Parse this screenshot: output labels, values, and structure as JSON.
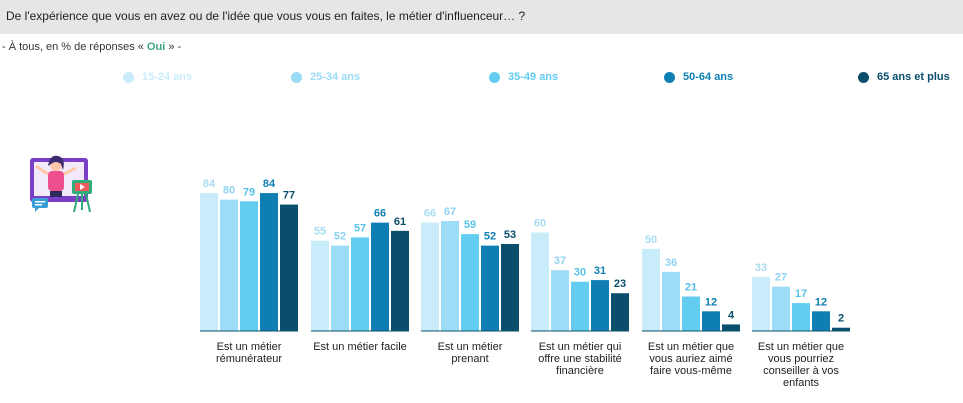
{
  "question": {
    "text": "De l'expérience que vous en avez ou de l'idée que vous vous en faites, le métier d'influenceur… ?",
    "sub_prefix": "- À tous, en % de réponses « ",
    "sub_highlight": "Oui",
    "sub_suffix": " » -"
  },
  "colors": {
    "15-24 ans": "#c9ecfa",
    "25-34 ans": "#9ddcf6",
    "35-49 ans": "#62ccf1",
    "50-64 ans": "#0f7fb3",
    "65 ans et plus": "#0b4e6b"
  },
  "chart_data": {
    "type": "bar",
    "title": "",
    "xlabel": "",
    "ylabel": "",
    "ylim": [
      0,
      100
    ],
    "grid": false,
    "legend_position": "top",
    "categories": [
      [
        "Est un métier",
        "rémunérateur"
      ],
      [
        "Est un métier facile"
      ],
      [
        "Est un métier",
        "prenant"
      ],
      [
        "Est un métier qui",
        "offre une stabilité",
        "financière"
      ],
      [
        "Est un métier que",
        "vous auriez aimé",
        "faire vous-même"
      ],
      [
        "Est un métier que",
        "vous pourriez",
        "conseiller à vos",
        "enfants"
      ]
    ],
    "series": [
      {
        "name": "15-24 ans",
        "values": [
          84,
          55,
          66,
          60,
          50,
          33
        ]
      },
      {
        "name": "25-34 ans",
        "values": [
          80,
          52,
          67,
          37,
          36,
          27
        ]
      },
      {
        "name": "35-49 ans",
        "values": [
          79,
          57,
          59,
          30,
          21,
          17
        ]
      },
      {
        "name": "50-64 ans",
        "values": [
          84,
          66,
          52,
          31,
          12,
          12
        ]
      },
      {
        "name": "65 ans et plus",
        "values": [
          77,
          61,
          53,
          23,
          4,
          2
        ]
      }
    ]
  }
}
